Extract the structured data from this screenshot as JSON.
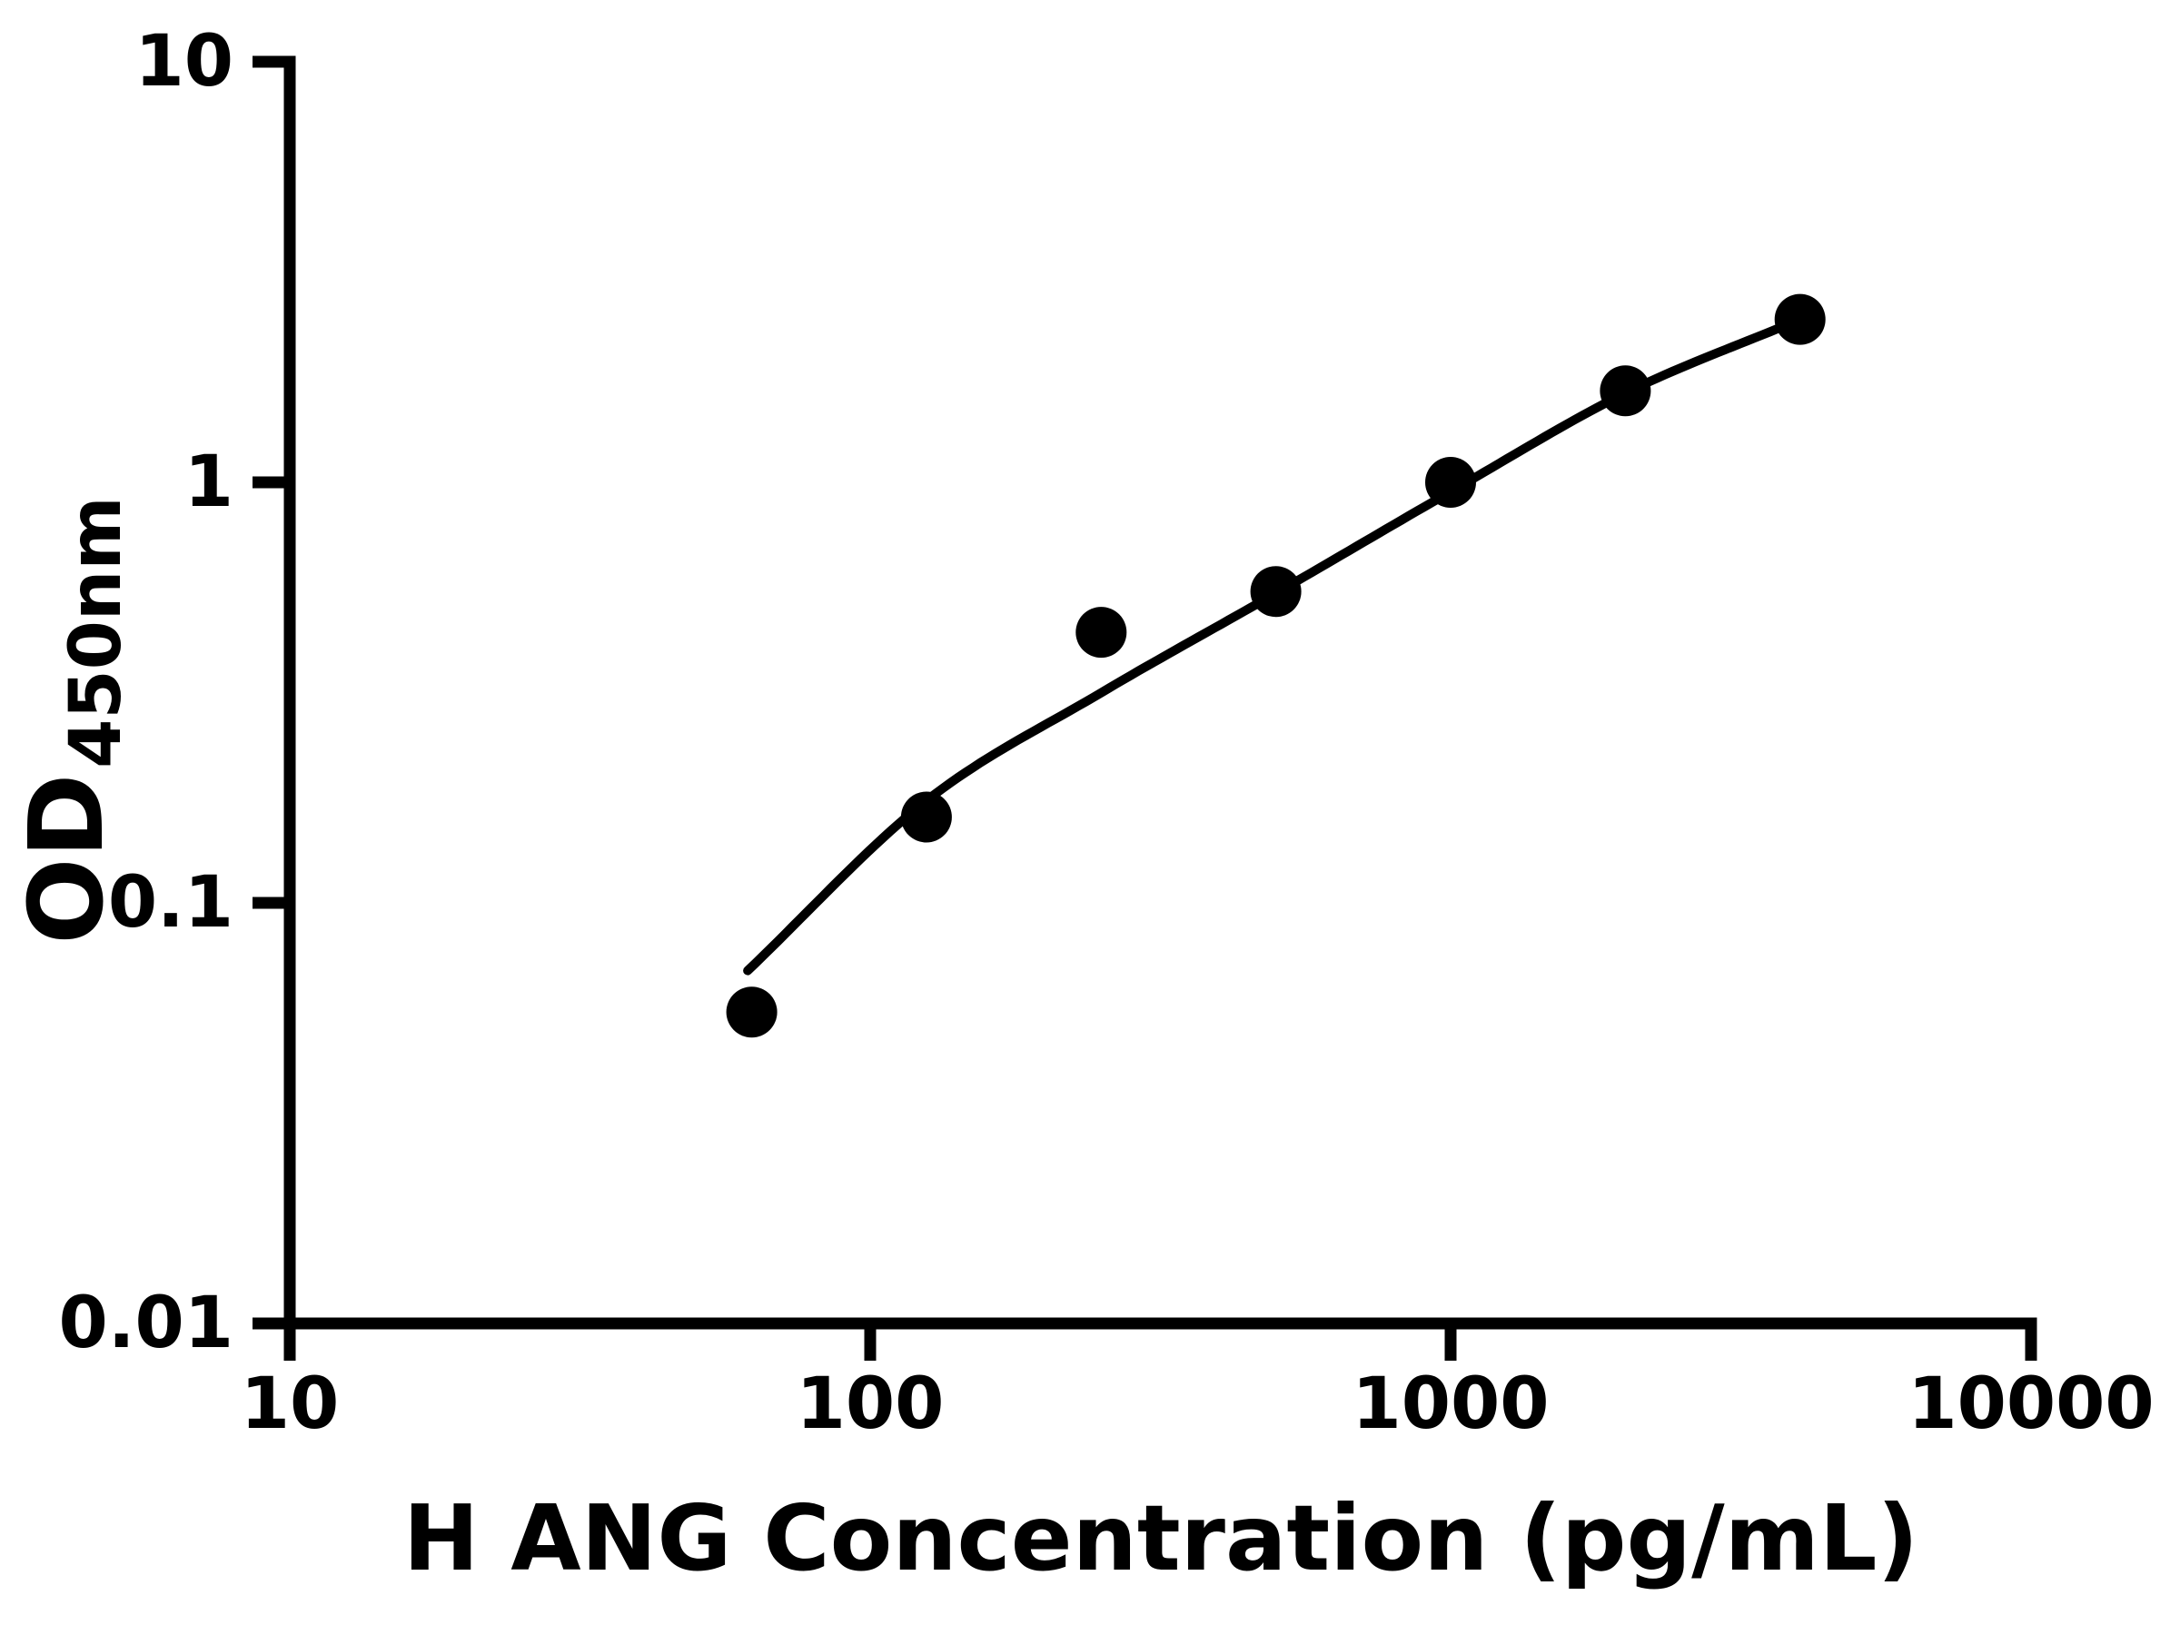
{
  "chart_data": {
    "type": "scatter",
    "title": "",
    "xlabel": "H ANG Concentration (pg/mL)",
    "ylabel": "OD",
    "ylabel_subscript": "450nm",
    "x_scale": "log",
    "y_scale": "log",
    "xlim": [
      10,
      10000
    ],
    "ylim": [
      0.01,
      10
    ],
    "x_ticks": [
      10,
      100,
      1000,
      10000
    ],
    "y_ticks": [
      0.01,
      0.1,
      1,
      10
    ],
    "x_tick_labels": [
      "10",
      "100",
      "1000",
      "10000"
    ],
    "y_tick_labels": [
      "0.01",
      "0.1",
      "1",
      "10"
    ],
    "grid": false,
    "legend": null,
    "colors": {
      "axis": "#000000",
      "marker": "#000000",
      "curve": "#000000",
      "background": "#ffffff"
    },
    "series": [
      {
        "name": "standard-points",
        "type": "scatter",
        "marker": "circle",
        "color": "#000000",
        "points": [
          {
            "x": 62.5,
            "y": 0.055
          },
          {
            "x": 125,
            "y": 0.16
          },
          {
            "x": 250,
            "y": 0.44
          },
          {
            "x": 500,
            "y": 0.55
          },
          {
            "x": 1000,
            "y": 1.0
          },
          {
            "x": 2000,
            "y": 1.65
          },
          {
            "x": 4000,
            "y": 2.44
          }
        ]
      },
      {
        "name": "fit-curve",
        "type": "line",
        "color": "#000000",
        "points": [
          {
            "x": 61.5,
            "y": 0.069
          },
          {
            "x": 125,
            "y": 0.175
          },
          {
            "x": 250,
            "y": 0.316
          },
          {
            "x": 500,
            "y": 0.545
          },
          {
            "x": 1000,
            "y": 0.95
          },
          {
            "x": 2000,
            "y": 1.63
          },
          {
            "x": 4000,
            "y": 2.44
          }
        ]
      }
    ]
  }
}
